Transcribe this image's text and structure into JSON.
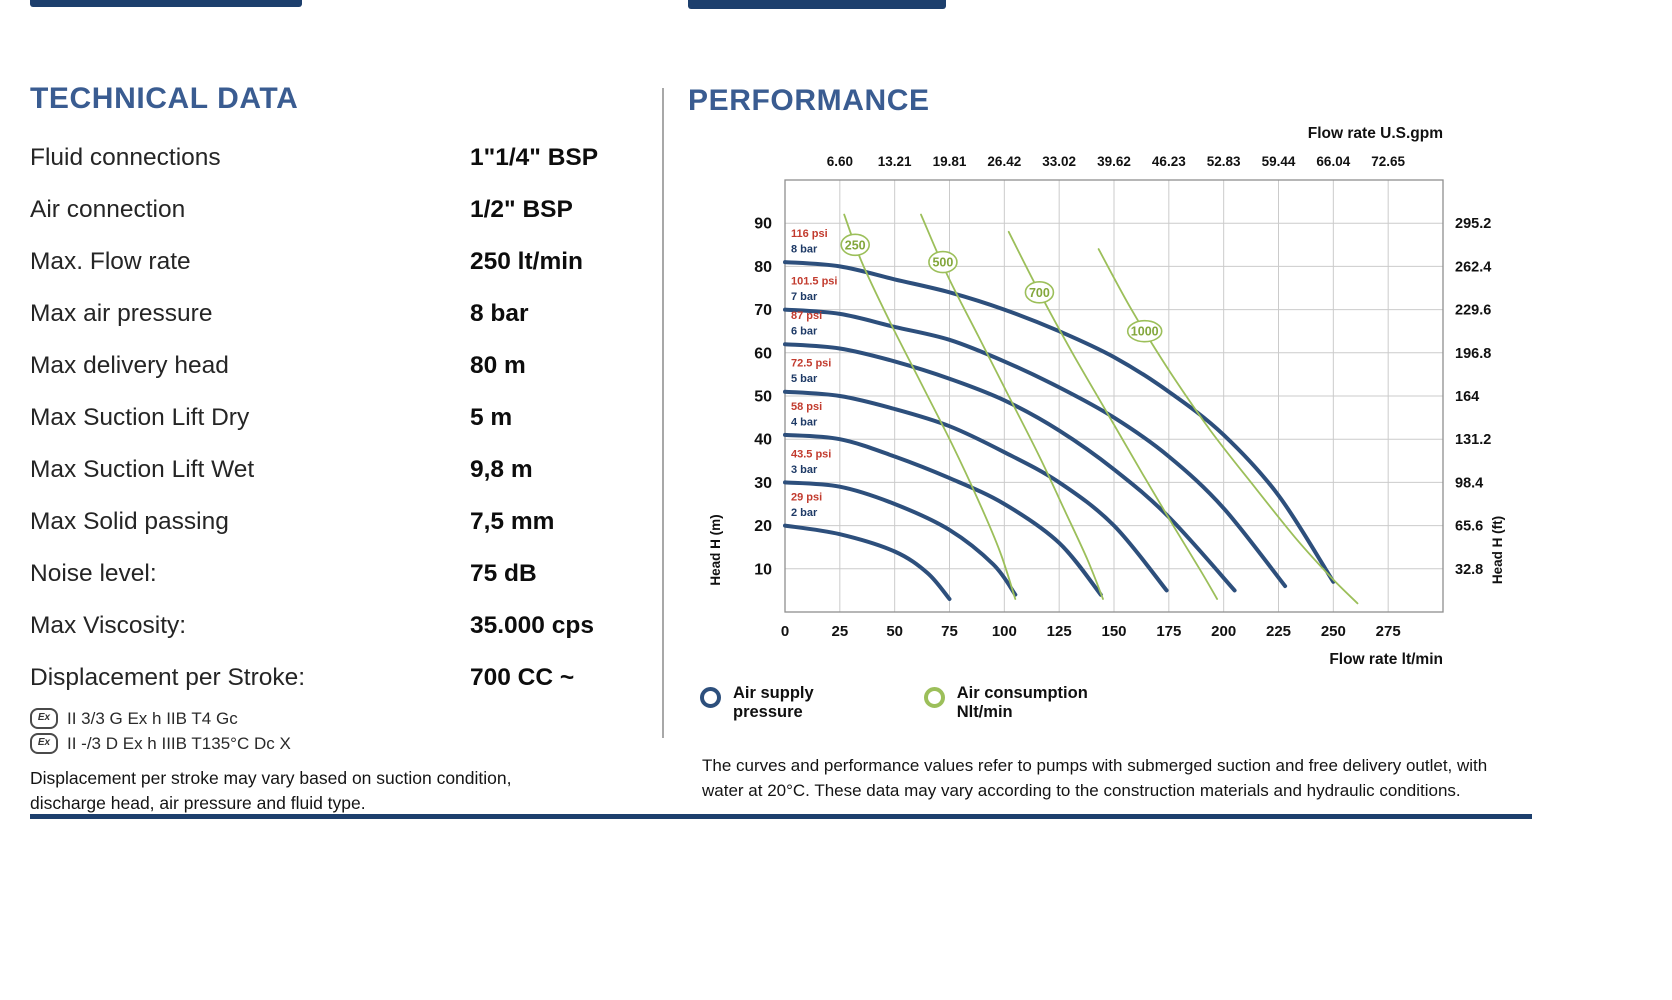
{
  "technical": {
    "title": "TECHNICAL DATA",
    "rows": [
      {
        "label": "Fluid connections",
        "value": "1\"1/4\" BSP"
      },
      {
        "label": "Air connection",
        "value": "1/2\" BSP"
      },
      {
        "label": "Max. Flow rate",
        "value": "250 lt/min"
      },
      {
        "label": "Max air pressure",
        "value": "8 bar"
      },
      {
        "label": "Max delivery head",
        "value": "80 m"
      },
      {
        "label": "Max Suction Lift Dry",
        "value": "5 m"
      },
      {
        "label": "Max Suction Lift Wet",
        "value": "9,8 m"
      },
      {
        "label": "Max Solid passing",
        "value": "7,5 mm"
      },
      {
        "label": "Noise level:",
        "value": "75 dB"
      },
      {
        "label": "Max Viscosity:",
        "value": "35.000 cps"
      },
      {
        "label": "Displacement per Stroke:",
        "value": "700 CC ~"
      }
    ],
    "ex_lines": [
      "II 3/3 G Ex h IIB T4 Gc",
      "II -/3 D Ex h IIIB T135°C Dc X"
    ],
    "note_lines": [
      "Displacement per stroke may vary based on suction condition,",
      "discharge head, air pressure and fluid type."
    ]
  },
  "performance": {
    "title": "PERFORMANCE",
    "legend": [
      {
        "lines": [
          "Air supply",
          "pressure"
        ],
        "color": "#2d4f7c"
      },
      {
        "lines": [
          "Air consumption",
          "Nlt/min"
        ],
        "color": "#9cbf5a"
      }
    ],
    "note_lines": [
      "The curves and performance values refer to pumps with submerged suction and free delivery outlet, with",
      "water at 20°C. These data may vary according to the construction materials and hydraulic conditions."
    ]
  },
  "chart_data": {
    "type": "line",
    "x_axis_bottom": {
      "label": "Flow rate  lt/min",
      "ticks": [
        0,
        25,
        50,
        75,
        100,
        125,
        150,
        175,
        200,
        225,
        250,
        275
      ],
      "range": [
        0,
        300
      ]
    },
    "x_axis_top": {
      "label": "Flow rate U.S.gpm",
      "ticks": [
        "6.60",
        "13.21",
        "19.81",
        "26.42",
        "33.02",
        "39.62",
        "46.23",
        "52.83",
        "59.44",
        "66.04",
        "72.65"
      ]
    },
    "y_axis_left": {
      "label": "Head H (m)",
      "ticks": [
        10,
        20,
        30,
        40,
        50,
        60,
        70,
        80,
        90
      ],
      "range": [
        0,
        100
      ]
    },
    "y_axis_right": {
      "label": "Head H (ft)",
      "ticks": [
        "295.2",
        "262.4",
        "229.6",
        "196.8",
        "164",
        "131.2",
        "98.4",
        "65.6",
        "32.8"
      ]
    },
    "grid": true,
    "colors": {
      "pressure": "#2d4f7c",
      "consumption": "#9cbf5a",
      "consumption_text": "#83a73c",
      "psi_text": "#c23b2e",
      "bar_text": "#1e3a66"
    },
    "pressure_series": [
      {
        "psi": "116 psi",
        "bar": "8 bar",
        "points": [
          [
            0,
            81
          ],
          [
            25,
            80
          ],
          [
            50,
            77
          ],
          [
            75,
            74
          ],
          [
            100,
            70
          ],
          [
            125,
            65
          ],
          [
            150,
            59
          ],
          [
            175,
            51
          ],
          [
            200,
            41
          ],
          [
            225,
            27
          ],
          [
            250,
            7
          ]
        ]
      },
      {
        "psi": "101.5 psi",
        "bar": "7 bar",
        "points": [
          [
            0,
            70
          ],
          [
            25,
            69
          ],
          [
            50,
            66
          ],
          [
            75,
            63
          ],
          [
            100,
            58
          ],
          [
            125,
            52
          ],
          [
            150,
            45
          ],
          [
            175,
            36
          ],
          [
            200,
            24
          ],
          [
            228,
            6
          ]
        ]
      },
      {
        "psi": "87 psi",
        "bar": "6 bar",
        "points": [
          [
            0,
            62
          ],
          [
            25,
            61
          ],
          [
            50,
            58
          ],
          [
            75,
            54
          ],
          [
            100,
            49
          ],
          [
            125,
            42
          ],
          [
            150,
            33
          ],
          [
            175,
            22
          ],
          [
            205,
            5
          ]
        ]
      },
      {
        "psi": "72.5 psi",
        "bar": "5 bar",
        "points": [
          [
            0,
            51
          ],
          [
            25,
            50
          ],
          [
            50,
            47
          ],
          [
            75,
            43
          ],
          [
            100,
            37
          ],
          [
            125,
            30
          ],
          [
            150,
            20
          ],
          [
            174,
            5
          ]
        ]
      },
      {
        "psi": "58 psi",
        "bar": "4 bar",
        "points": [
          [
            0,
            41
          ],
          [
            25,
            40
          ],
          [
            50,
            36
          ],
          [
            75,
            31
          ],
          [
            100,
            25
          ],
          [
            125,
            16
          ],
          [
            144,
            4
          ]
        ]
      },
      {
        "psi": "43.5 psi",
        "bar": "3 bar",
        "points": [
          [
            0,
            30
          ],
          [
            25,
            29
          ],
          [
            50,
            25
          ],
          [
            75,
            19
          ],
          [
            95,
            11
          ],
          [
            105,
            4
          ]
        ]
      },
      {
        "psi": "29 psi",
        "bar": "2 bar",
        "points": [
          [
            0,
            20
          ],
          [
            25,
            18
          ],
          [
            50,
            14
          ],
          [
            65,
            9
          ],
          [
            75,
            3
          ]
        ]
      }
    ],
    "consumption_series": [
      {
        "value": "250",
        "label_at": [
          32,
          85
        ],
        "points": [
          [
            27,
            92
          ],
          [
            35,
            81
          ],
          [
            48,
            67
          ],
          [
            62,
            53
          ],
          [
            76,
            39
          ],
          [
            88,
            26
          ],
          [
            98,
            14
          ],
          [
            105,
            3
          ]
        ]
      },
      {
        "value": "500",
        "label_at": [
          72,
          81
        ],
        "points": [
          [
            62,
            92
          ],
          [
            74,
            78
          ],
          [
            88,
            64
          ],
          [
            102,
            50
          ],
          [
            116,
            36
          ],
          [
            128,
            23
          ],
          [
            138,
            12
          ],
          [
            145,
            3
          ]
        ]
      },
      {
        "value": "700",
        "label_at": [
          116,
          74
        ],
        "points": [
          [
            102,
            88
          ],
          [
            116,
            74
          ],
          [
            131,
            60
          ],
          [
            147,
            46
          ],
          [
            163,
            32
          ],
          [
            177,
            20
          ],
          [
            189,
            10
          ],
          [
            197,
            3
          ]
        ]
      },
      {
        "value": "1000",
        "label_at": [
          164,
          65
        ],
        "points": [
          [
            143,
            84
          ],
          [
            158,
            70
          ],
          [
            175,
            56
          ],
          [
            194,
            42
          ],
          [
            214,
            29
          ],
          [
            233,
            17
          ],
          [
            249,
            8
          ],
          [
            261,
            2
          ]
        ]
      }
    ]
  }
}
